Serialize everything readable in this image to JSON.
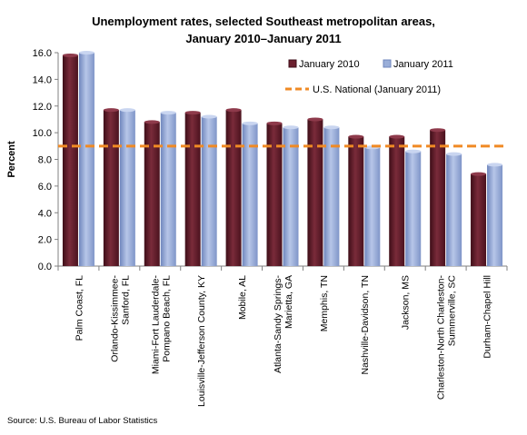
{
  "chart_data": {
    "type": "bar",
    "title_line1": "Unemployment rates, selected Southeast metropolitan areas,",
    "title_line2": "January 2010–January 2011",
    "ylabel": "Percent",
    "xlabel": "",
    "ylim": [
      0,
      16
    ],
    "yticks": [
      "0.0",
      "2.0",
      "4.0",
      "6.0",
      "8.0",
      "10.0",
      "12.0",
      "14.0",
      "16.0"
    ],
    "grid": false,
    "legend_position": "top-right",
    "categories": [
      [
        "Palm Coast, FL"
      ],
      [
        "Orlando-Kissimmee-",
        "Sanford, FL"
      ],
      [
        "Miami-Fort Lauderdale-",
        "Pompano Beach, FL"
      ],
      [
        "Louisville-Jefferson County, KY"
      ],
      [
        "Mobile, AL"
      ],
      [
        "Atlanta-Sandy Springs-",
        "Marietta, GA"
      ],
      [
        "Memphis, TN"
      ],
      [
        "Nashville-Davidson, TN"
      ],
      [
        "Jackson, MS"
      ],
      [
        "Charleston-North Charleston-",
        "Summerville, SC"
      ],
      [
        "Durham-Chapel Hill"
      ]
    ],
    "series": [
      {
        "name": "January 2010",
        "color": "#6b1f2e",
        "values": [
          15.8,
          11.7,
          10.8,
          11.5,
          11.7,
          10.7,
          11.0,
          9.7,
          9.7,
          10.2,
          6.9
        ]
      },
      {
        "name": "January 2011",
        "color": "#9aaed8",
        "values": [
          16.0,
          11.7,
          11.5,
          11.2,
          10.7,
          10.4,
          10.4,
          8.9,
          8.6,
          8.4,
          7.6
        ]
      }
    ],
    "reference_line": {
      "name": "U.S. National (January 2011)",
      "value": 9.0,
      "color": "#f08a24"
    }
  },
  "source": "Source: U.S. Bureau of Labor Statistics"
}
